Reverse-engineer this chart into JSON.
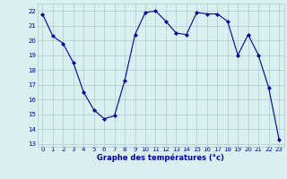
{
  "hours": [
    0,
    1,
    2,
    3,
    4,
    5,
    6,
    7,
    8,
    9,
    10,
    11,
    12,
    13,
    14,
    15,
    16,
    17,
    18,
    19,
    20,
    21,
    22,
    23
  ],
  "temps": [
    21.8,
    20.3,
    19.8,
    18.5,
    16.5,
    15.3,
    14.7,
    14.9,
    17.3,
    20.4,
    21.9,
    22.0,
    21.3,
    20.5,
    20.4,
    21.9,
    21.8,
    21.8,
    21.3,
    19.0,
    20.4,
    19.0,
    16.8,
    13.3
  ],
  "line_color": "#0000aa",
  "marker": "D",
  "marker_size": 2,
  "bg_color": "#d8f0f0",
  "grid_color": "#aacccc",
  "xlabel": "Graphe des températures (°c)",
  "xlabel_color": "#0000aa",
  "tick_color": "#0000aa",
  "ylim": [
    12.8,
    22.5
  ],
  "yticks": [
    13,
    14,
    15,
    16,
    17,
    18,
    19,
    20,
    21,
    22
  ],
  "xlim": [
    -0.5,
    23.5
  ],
  "xticks": [
    0,
    1,
    2,
    3,
    4,
    5,
    6,
    7,
    8,
    9,
    10,
    11,
    12,
    13,
    14,
    15,
    16,
    17,
    18,
    19,
    20,
    21,
    22,
    23
  ]
}
